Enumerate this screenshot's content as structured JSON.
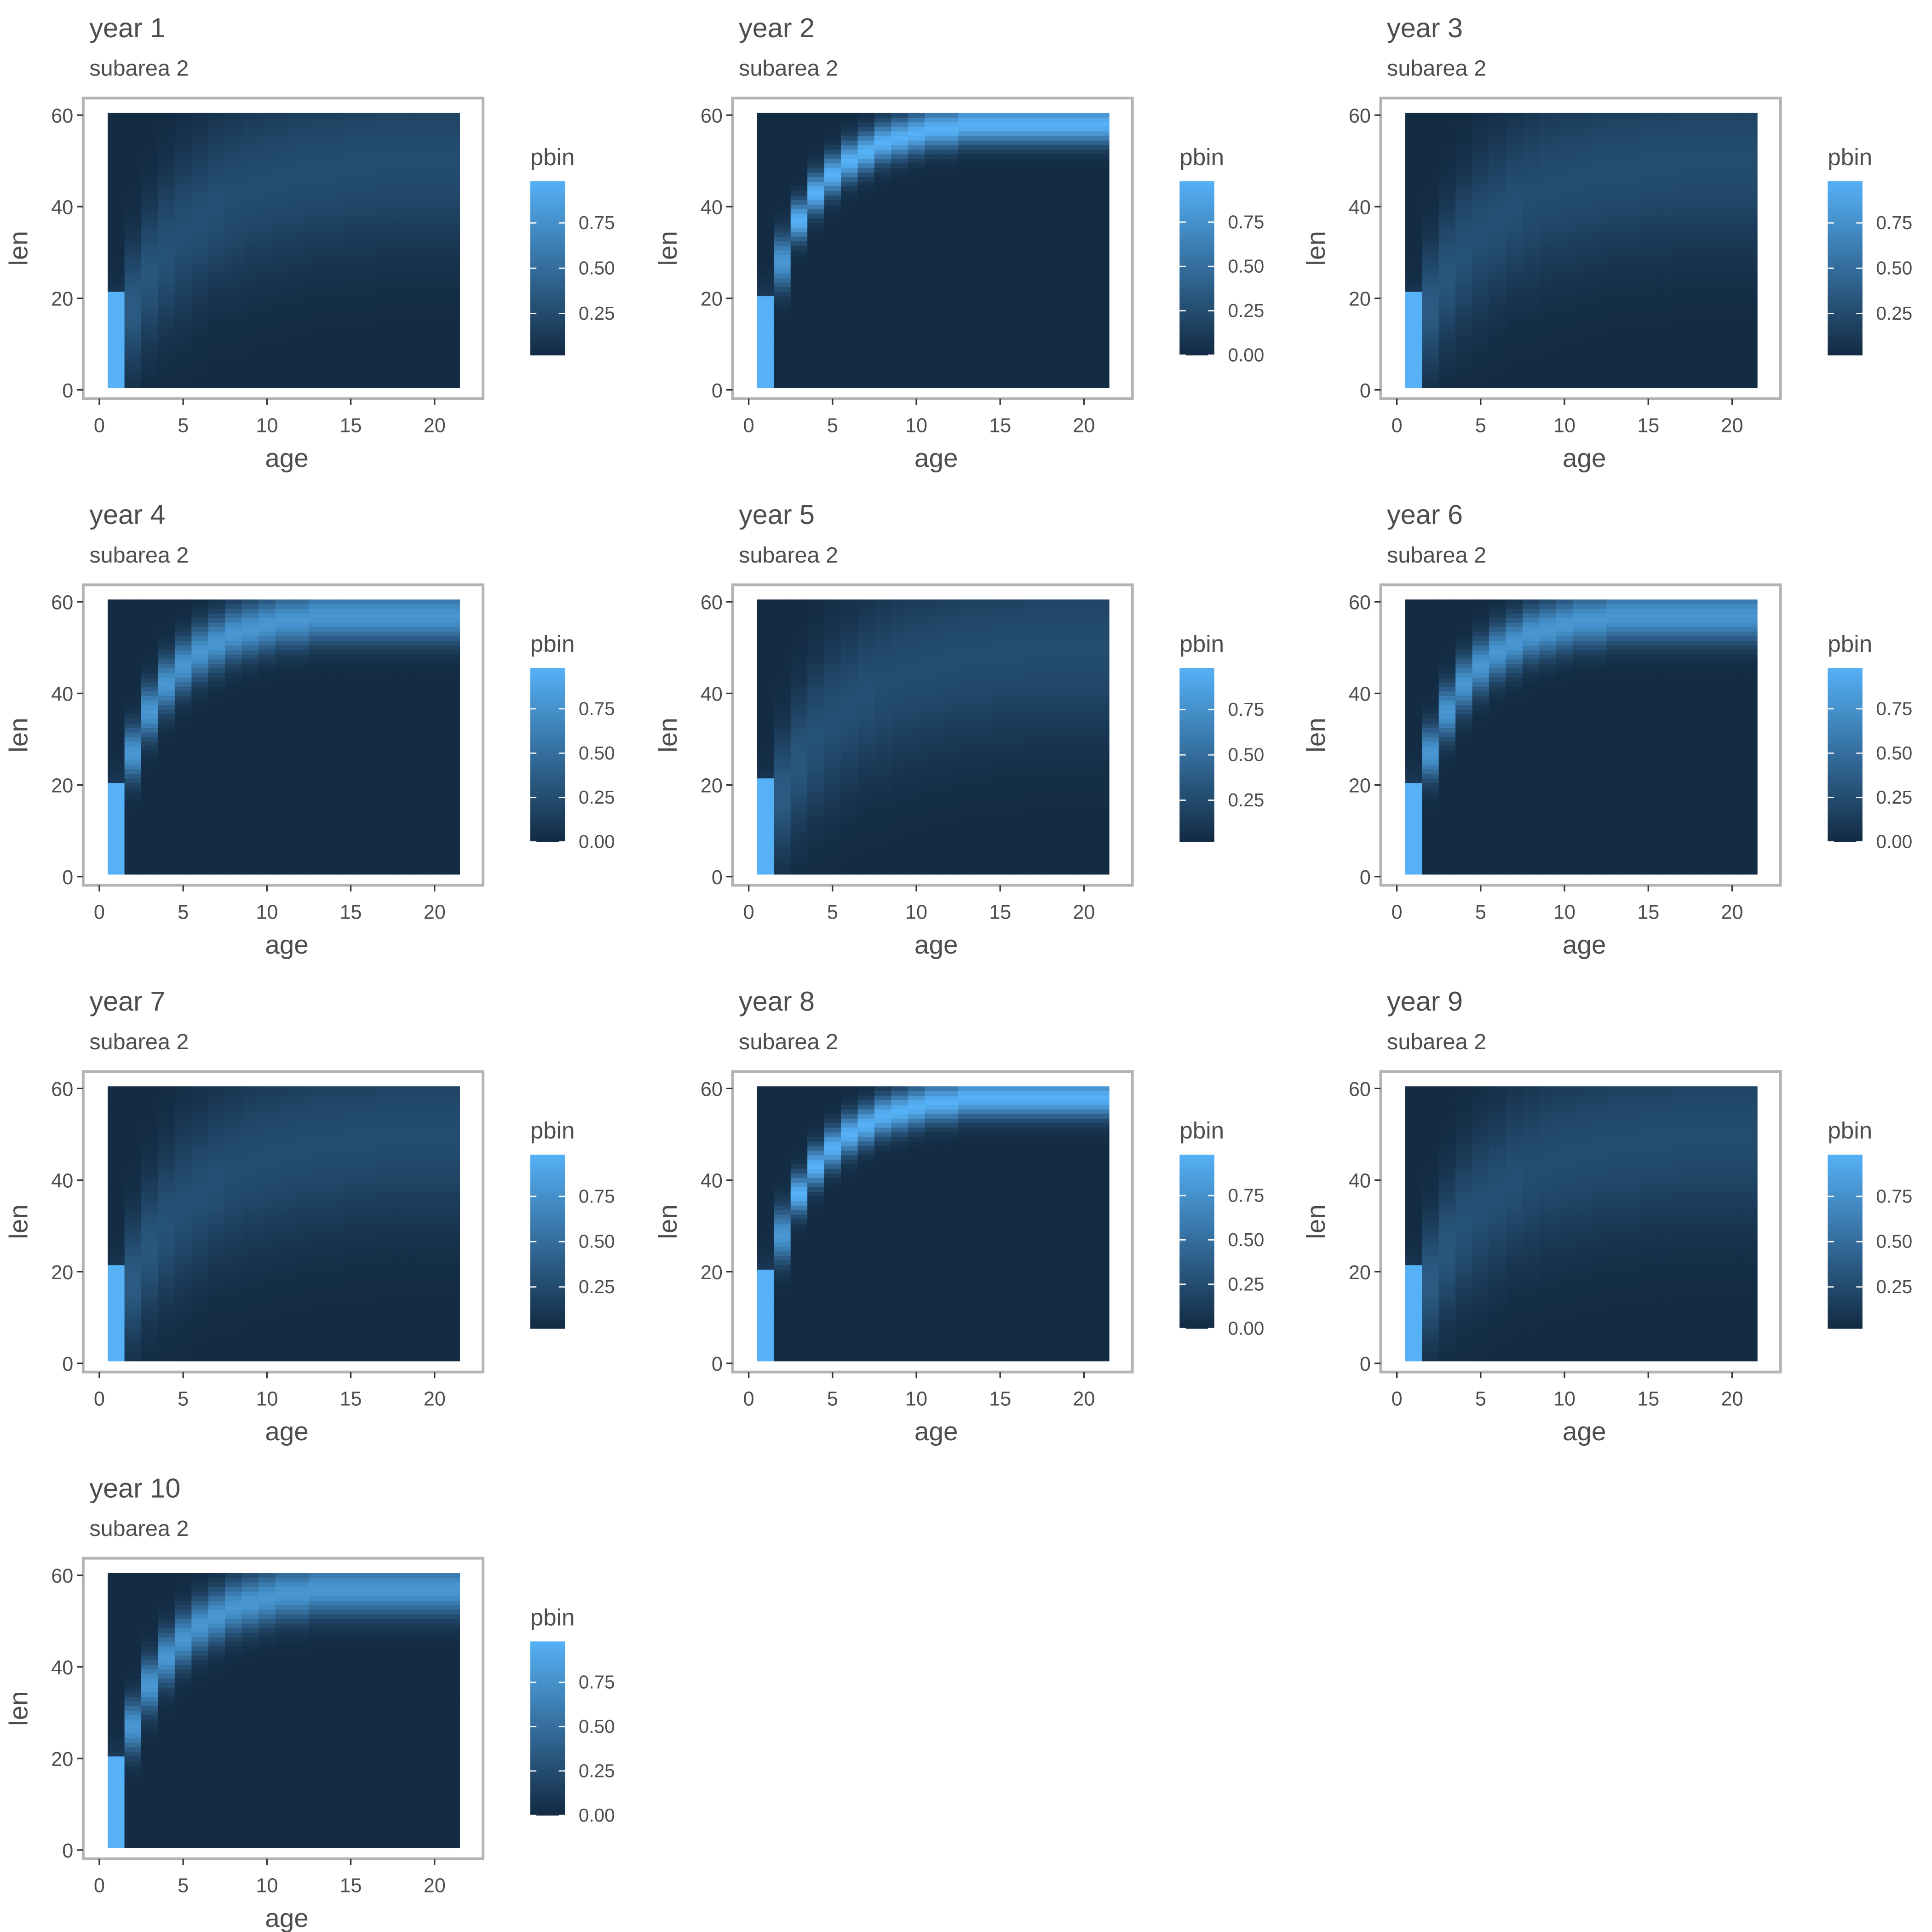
{
  "figure": {
    "background": "#ffffff"
  },
  "colors": {
    "low": "#132B43",
    "high": "#56B1F7",
    "frame": "#b3b3b3",
    "text": "#4d4d4d",
    "ticks": "#333333"
  },
  "chart_data": [
    {
      "type": "heatmap",
      "title": "year  1",
      "subtitle": "subarea 2",
      "xlabel": "age",
      "ylabel": "len",
      "legend_title": "pbin",
      "xlim": [
        0,
        22
      ],
      "ylim": [
        0,
        61
      ],
      "xticks": [
        "0",
        "5",
        "10",
        "15",
        "20"
      ],
      "yticks": [
        "0",
        "20",
        "40",
        "60"
      ],
      "legend_ticks": [
        "0.25",
        "0.50",
        "0.75"
      ],
      "legend_range": [
        0.02,
        0.98
      ],
      "legend_placement": "right",
      "ages": [
        1,
        2,
        3,
        4,
        5,
        6,
        7,
        8,
        9,
        10,
        11,
        12,
        13,
        14,
        15,
        16,
        17,
        18,
        19,
        20,
        21
      ],
      "len_bins": [
        1,
        60
      ],
      "peak_len_by_age": [
        8,
        18,
        25,
        30,
        34,
        37,
        40,
        42,
        44,
        45,
        46,
        47,
        48,
        48,
        49,
        49,
        50,
        50,
        50,
        50,
        50
      ],
      "spread_by_age": [
        7,
        9,
        10,
        11,
        12,
        12,
        12,
        13,
        13,
        13,
        13,
        13,
        13,
        13,
        13,
        13,
        13,
        13,
        13,
        13,
        13
      ],
      "first_age_saturated_below": 21
    },
    {
      "type": "heatmap",
      "title": "year  2",
      "subtitle": "subarea 2",
      "xlabel": "age",
      "ylabel": "len",
      "legend_title": "pbin",
      "xlim": [
        0,
        22
      ],
      "ylim": [
        0,
        61
      ],
      "xticks": [
        "0",
        "5",
        "10",
        "15",
        "20"
      ],
      "yticks": [
        "0",
        "20",
        "40",
        "60"
      ],
      "legend_ticks": [
        "0.00",
        "0.25",
        "0.50",
        "0.75"
      ],
      "legend_range": [
        0.0,
        0.98
      ],
      "legend_placement": "right",
      "ages": [
        1,
        2,
        3,
        4,
        5,
        6,
        7,
        8,
        9,
        10,
        11,
        12,
        13,
        14,
        15,
        16,
        17,
        18,
        19,
        20,
        21
      ],
      "len_bins": [
        1,
        60
      ],
      "peak_len_by_age": [
        10,
        28,
        37,
        43,
        47,
        50,
        52,
        54,
        55,
        56,
        57,
        57,
        58,
        58,
        58,
        58,
        58,
        58,
        58,
        58,
        58
      ],
      "spread_by_age": [
        6,
        4,
        3,
        3,
        3,
        3,
        3,
        3,
        3,
        3,
        3,
        3,
        3,
        3,
        3,
        3,
        3,
        3,
        3,
        3,
        3
      ],
      "first_age_saturated_below": 20
    },
    {
      "type": "heatmap",
      "title": "year  3",
      "subtitle": "subarea 2",
      "xlabel": "age",
      "ylabel": "len",
      "legend_title": "pbin",
      "xlim": [
        0,
        22
      ],
      "ylim": [
        0,
        61
      ],
      "xticks": [
        "0",
        "5",
        "10",
        "15",
        "20"
      ],
      "yticks": [
        "0",
        "20",
        "40",
        "60"
      ],
      "legend_ticks": [
        "0.25",
        "0.50",
        "0.75"
      ],
      "legend_range": [
        0.02,
        0.98
      ],
      "legend_placement": "right",
      "ages": [
        1,
        2,
        3,
        4,
        5,
        6,
        7,
        8,
        9,
        10,
        11,
        12,
        13,
        14,
        15,
        16,
        17,
        18,
        19,
        20,
        21
      ],
      "len_bins": [
        1,
        60
      ],
      "peak_len_by_age": [
        8,
        18,
        25,
        30,
        34,
        37,
        40,
        42,
        44,
        45,
        46,
        47,
        48,
        48,
        49,
        49,
        50,
        50,
        50,
        50,
        50
      ],
      "spread_by_age": [
        7,
        9,
        10,
        11,
        12,
        12,
        12,
        13,
        13,
        13,
        13,
        13,
        13,
        13,
        13,
        13,
        13,
        13,
        13,
        13,
        13
      ],
      "first_age_saturated_below": 21
    },
    {
      "type": "heatmap",
      "title": "year  4",
      "subtitle": "subarea 2",
      "xlabel": "age",
      "ylabel": "len",
      "legend_title": "pbin",
      "xlim": [
        0,
        22
      ],
      "ylim": [
        0,
        61
      ],
      "xticks": [
        "0",
        "5",
        "10",
        "15",
        "20"
      ],
      "yticks": [
        "0",
        "20",
        "40",
        "60"
      ],
      "legend_ticks": [
        "0.00",
        "0.25",
        "0.50",
        "0.75"
      ],
      "legend_range": [
        0.0,
        0.98
      ],
      "legend_placement": "right",
      "ages": [
        1,
        2,
        3,
        4,
        5,
        6,
        7,
        8,
        9,
        10,
        11,
        12,
        13,
        14,
        15,
        16,
        17,
        18,
        19,
        20,
        21
      ],
      "len_bins": [
        1,
        60
      ],
      "peak_len_by_age": [
        10,
        27,
        36,
        42,
        46,
        49,
        51,
        53,
        54,
        55,
        56,
        56,
        57,
        57,
        57,
        57,
        57,
        57,
        57,
        57,
        57
      ],
      "spread_by_age": [
        6,
        4,
        4,
        4,
        4,
        4,
        4,
        4,
        4,
        4,
        4,
        4,
        4,
        4,
        4,
        4,
        4,
        4,
        4,
        4,
        4
      ],
      "first_age_saturated_below": 20
    },
    {
      "type": "heatmap",
      "title": "year  5",
      "subtitle": "subarea 2",
      "xlabel": "age",
      "ylabel": "len",
      "legend_title": "pbin",
      "xlim": [
        0,
        22
      ],
      "ylim": [
        0,
        61
      ],
      "xticks": [
        "0",
        "5",
        "10",
        "15",
        "20"
      ],
      "yticks": [
        "0",
        "20",
        "40",
        "60"
      ],
      "legend_ticks": [
        "0.25",
        "0.50",
        "0.75"
      ],
      "legend_range": [
        0.02,
        0.98
      ],
      "legend_placement": "right",
      "ages": [
        1,
        2,
        3,
        4,
        5,
        6,
        7,
        8,
        9,
        10,
        11,
        12,
        13,
        14,
        15,
        16,
        17,
        18,
        19,
        20,
        21
      ],
      "len_bins": [
        1,
        60
      ],
      "peak_len_by_age": [
        8,
        18,
        25,
        30,
        34,
        37,
        40,
        42,
        44,
        45,
        46,
        47,
        48,
        48,
        49,
        49,
        50,
        50,
        50,
        50,
        50
      ],
      "spread_by_age": [
        7,
        9,
        10,
        11,
        12,
        12,
        12,
        13,
        13,
        13,
        13,
        13,
        13,
        13,
        13,
        13,
        13,
        13,
        13,
        13,
        13
      ],
      "first_age_saturated_below": 21
    },
    {
      "type": "heatmap",
      "title": "year  6",
      "subtitle": "subarea 2",
      "xlabel": "age",
      "ylabel": "len",
      "legend_title": "pbin",
      "xlim": [
        0,
        22
      ],
      "ylim": [
        0,
        61
      ],
      "xticks": [
        "0",
        "5",
        "10",
        "15",
        "20"
      ],
      "yticks": [
        "0",
        "20",
        "40",
        "60"
      ],
      "legend_ticks": [
        "0.00",
        "0.25",
        "0.50",
        "0.75"
      ],
      "legend_range": [
        0.0,
        0.98
      ],
      "legend_placement": "right",
      "ages": [
        1,
        2,
        3,
        4,
        5,
        6,
        7,
        8,
        9,
        10,
        11,
        12,
        13,
        14,
        15,
        16,
        17,
        18,
        19,
        20,
        21
      ],
      "len_bins": [
        1,
        60
      ],
      "peak_len_by_age": [
        10,
        27,
        36,
        42,
        46,
        49,
        51,
        53,
        54,
        55,
        56,
        56,
        57,
        57,
        57,
        57,
        57,
        57,
        57,
        57,
        57
      ],
      "spread_by_age": [
        6,
        4,
        4,
        4,
        4,
        4,
        4,
        4,
        4,
        4,
        4,
        4,
        4,
        4,
        4,
        4,
        4,
        4,
        4,
        4,
        4
      ],
      "first_age_saturated_below": 20
    },
    {
      "type": "heatmap",
      "title": "year  7",
      "subtitle": "subarea 2",
      "xlabel": "age",
      "ylabel": "len",
      "legend_title": "pbin",
      "xlim": [
        0,
        22
      ],
      "ylim": [
        0,
        61
      ],
      "xticks": [
        "0",
        "5",
        "10",
        "15",
        "20"
      ],
      "yticks": [
        "0",
        "20",
        "40",
        "60"
      ],
      "legend_ticks": [
        "0.25",
        "0.50",
        "0.75"
      ],
      "legend_range": [
        0.02,
        0.98
      ],
      "legend_placement": "right",
      "ages": [
        1,
        2,
        3,
        4,
        5,
        6,
        7,
        8,
        9,
        10,
        11,
        12,
        13,
        14,
        15,
        16,
        17,
        18,
        19,
        20,
        21
      ],
      "len_bins": [
        1,
        60
      ],
      "peak_len_by_age": [
        8,
        18,
        25,
        30,
        34,
        37,
        40,
        42,
        44,
        45,
        46,
        47,
        48,
        48,
        49,
        49,
        50,
        50,
        50,
        50,
        50
      ],
      "spread_by_age": [
        7,
        9,
        10,
        11,
        12,
        12,
        12,
        13,
        13,
        13,
        13,
        13,
        13,
        13,
        13,
        13,
        13,
        13,
        13,
        13,
        13
      ],
      "first_age_saturated_below": 21
    },
    {
      "type": "heatmap",
      "title": "year  8",
      "subtitle": "subarea 2",
      "xlabel": "age",
      "ylabel": "len",
      "legend_title": "pbin",
      "xlim": [
        0,
        22
      ],
      "ylim": [
        0,
        61
      ],
      "xticks": [
        "0",
        "5",
        "10",
        "15",
        "20"
      ],
      "yticks": [
        "0",
        "20",
        "40",
        "60"
      ],
      "legend_ticks": [
        "0.00",
        "0.25",
        "0.50",
        "0.75"
      ],
      "legend_range": [
        0.0,
        0.98
      ],
      "legend_placement": "right",
      "ages": [
        1,
        2,
        3,
        4,
        5,
        6,
        7,
        8,
        9,
        10,
        11,
        12,
        13,
        14,
        15,
        16,
        17,
        18,
        19,
        20,
        21
      ],
      "len_bins": [
        1,
        60
      ],
      "peak_len_by_age": [
        10,
        28,
        37,
        43,
        47,
        50,
        52,
        54,
        55,
        56,
        57,
        57,
        58,
        58,
        58,
        58,
        58,
        58,
        58,
        58,
        58
      ],
      "spread_by_age": [
        6,
        4,
        3,
        3,
        3,
        3,
        3,
        3,
        3,
        3,
        3,
        3,
        3,
        3,
        3,
        3,
        3,
        3,
        3,
        3,
        3
      ],
      "first_age_saturated_below": 20
    },
    {
      "type": "heatmap",
      "title": "year  9",
      "subtitle": "subarea 2",
      "xlabel": "age",
      "ylabel": "len",
      "legend_title": "pbin",
      "xlim": [
        0,
        22
      ],
      "ylim": [
        0,
        61
      ],
      "xticks": [
        "0",
        "5",
        "10",
        "15",
        "20"
      ],
      "yticks": [
        "0",
        "20",
        "40",
        "60"
      ],
      "legend_ticks": [
        "0.25",
        "0.50",
        "0.75"
      ],
      "legend_range": [
        0.02,
        0.98
      ],
      "legend_placement": "right",
      "ages": [
        1,
        2,
        3,
        4,
        5,
        6,
        7,
        8,
        9,
        10,
        11,
        12,
        13,
        14,
        15,
        16,
        17,
        18,
        19,
        20,
        21
      ],
      "len_bins": [
        1,
        60
      ],
      "peak_len_by_age": [
        8,
        18,
        25,
        30,
        34,
        37,
        40,
        42,
        44,
        45,
        46,
        47,
        48,
        48,
        49,
        49,
        50,
        50,
        50,
        50,
        50
      ],
      "spread_by_age": [
        7,
        9,
        10,
        11,
        12,
        12,
        12,
        13,
        13,
        13,
        13,
        13,
        13,
        13,
        13,
        13,
        13,
        13,
        13,
        13,
        13
      ],
      "first_age_saturated_below": 21
    },
    {
      "type": "heatmap",
      "title": "year  10",
      "subtitle": "subarea 2",
      "xlabel": "age",
      "ylabel": "len",
      "legend_title": "pbin",
      "xlim": [
        0,
        22
      ],
      "ylim": [
        0,
        61
      ],
      "xticks": [
        "0",
        "5",
        "10",
        "15",
        "20"
      ],
      "yticks": [
        "0",
        "20",
        "40",
        "60"
      ],
      "legend_ticks": [
        "0.00",
        "0.25",
        "0.50",
        "0.75"
      ],
      "legend_range": [
        0.0,
        0.98
      ],
      "legend_placement": "right",
      "ages": [
        1,
        2,
        3,
        4,
        5,
        6,
        7,
        8,
        9,
        10,
        11,
        12,
        13,
        14,
        15,
        16,
        17,
        18,
        19,
        20,
        21
      ],
      "len_bins": [
        1,
        60
      ],
      "peak_len_by_age": [
        10,
        27,
        36,
        42,
        46,
        49,
        51,
        53,
        54,
        55,
        56,
        56,
        57,
        57,
        57,
        57,
        57,
        57,
        57,
        57,
        57
      ],
      "spread_by_age": [
        6,
        4,
        4,
        4,
        4,
        4,
        4,
        4,
        4,
        4,
        4,
        4,
        4,
        4,
        4,
        4,
        4,
        4,
        4,
        4,
        4
      ],
      "first_age_saturated_below": 20
    }
  ]
}
